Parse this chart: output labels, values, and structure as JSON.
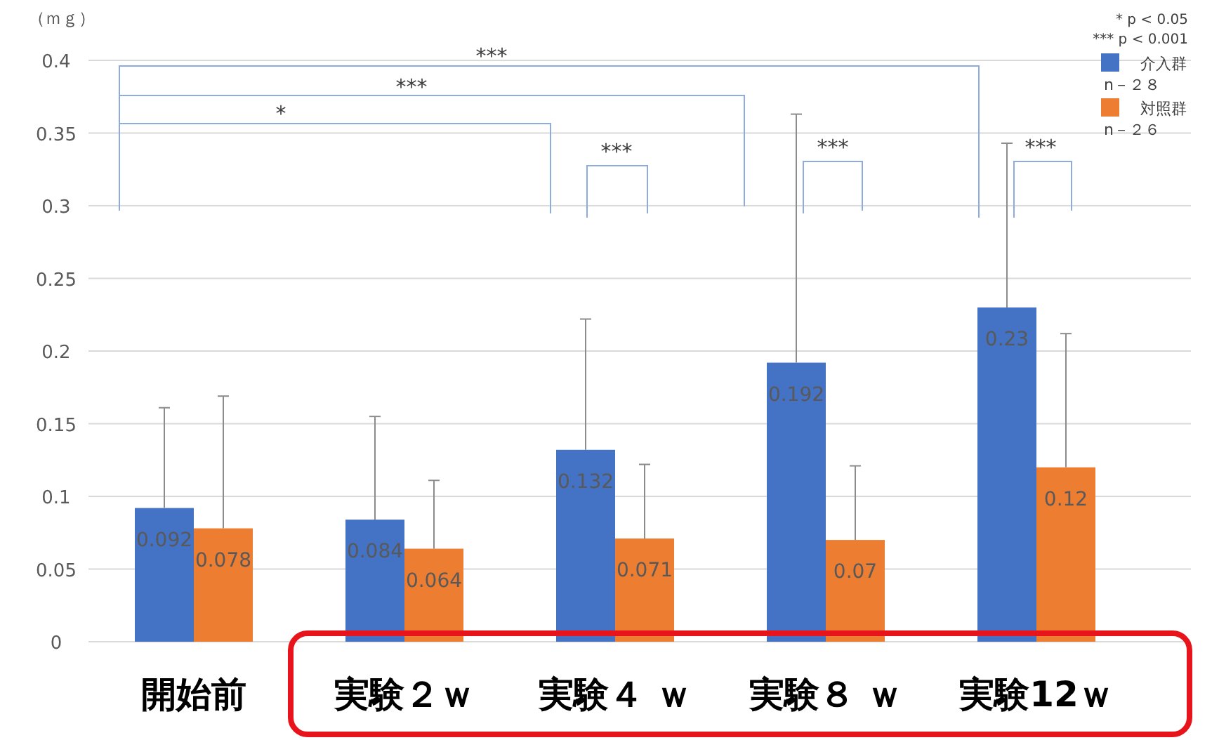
{
  "chart_data": {
    "type": "bar",
    "ylabel": "（ｍｇ）",
    "categories": [
      "開始前",
      "実験２ｗ",
      "実験４ ｗ",
      "実験８ ｗ",
      "実験12ｗ"
    ],
    "series": [
      {
        "name": "介入群",
        "color": "#4472c4",
        "values": [
          0.092,
          0.084,
          0.132,
          0.192,
          0.23
        ],
        "errors": [
          [
            0.092,
            0.161
          ],
          [
            0.084,
            0.155
          ],
          [
            0.132,
            0.222
          ],
          [
            0.192,
            0.363
          ],
          [
            0.23,
            0.343
          ]
        ]
      },
      {
        "name": "対照群",
        "color": "#ed7d31",
        "values": [
          0.078,
          0.064,
          0.071,
          0.07,
          0.12
        ],
        "errors": [
          [
            0.078,
            0.169
          ],
          [
            0.064,
            0.111
          ],
          [
            0.071,
            0.122
          ],
          [
            0.07,
            0.121
          ],
          [
            0.12,
            0.212
          ]
        ]
      }
    ],
    "ylim": [
      0,
      0.4
    ],
    "yticks": [
      0,
      0.05,
      0.1,
      0.15,
      0.2,
      0.25,
      0.3,
      0.35,
      0.4
    ],
    "grid": "y",
    "data_labels": true,
    "legend": "top right",
    "annotations": [
      "***",
      "***",
      "*",
      "***",
      "***",
      "***",
      "* p < 0.05",
      "*** p < 0.001",
      "n－２８",
      "n－２６"
    ]
  }
}
